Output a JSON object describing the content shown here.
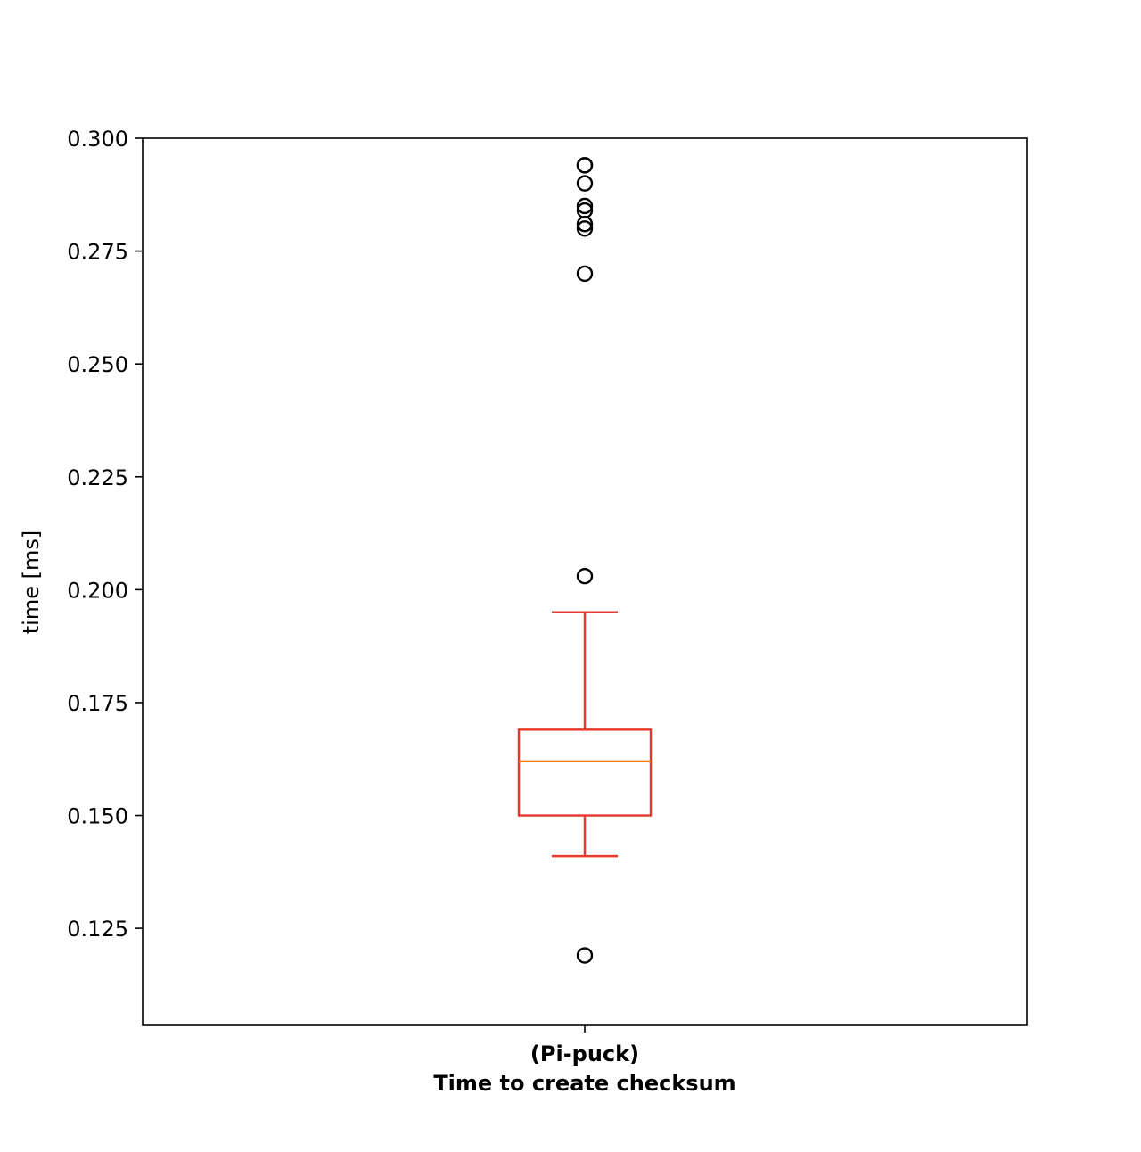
{
  "chart_data": {
    "type": "box",
    "ylabel": "time [ms]",
    "ylim": [
      0.1035,
      0.3
    ],
    "yticks": [
      "0.300",
      "0.275",
      "0.250",
      "0.225",
      "0.200",
      "0.175",
      "0.150",
      "0.125"
    ],
    "ytick_values": [
      0.3,
      0.275,
      0.25,
      0.225,
      0.2,
      0.175,
      0.15,
      0.125
    ],
    "categories": [
      {
        "line1": "(Pi-puck)",
        "line2": "Time to create checksum"
      }
    ],
    "boxes": [
      {
        "whisker_low": 0.141,
        "q1": 0.15,
        "median": 0.162,
        "q3": 0.169,
        "whisker_high": 0.195,
        "outliers": [
          0.294,
          0.294,
          0.29,
          0.285,
          0.284,
          0.281,
          0.28,
          0.27,
          0.203,
          0.119
        ]
      }
    ],
    "grid": false,
    "colors": {
      "box": "#e8382d",
      "median": "#ff7f0e",
      "outlier": "#000000",
      "axis": "#000000"
    }
  }
}
